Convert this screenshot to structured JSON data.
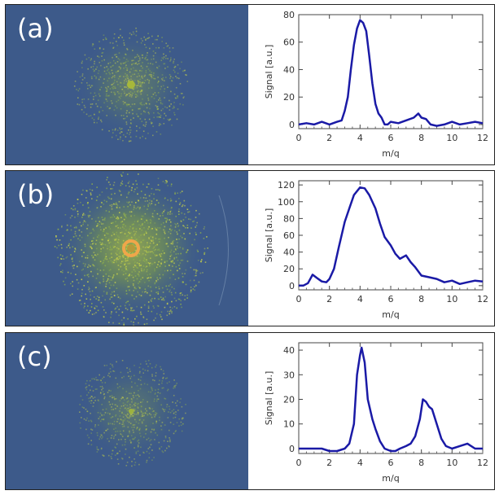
{
  "panels": [
    {
      "tag": "(a)",
      "detector": {
        "ring_intensity": 0.35,
        "core": "small-dot"
      },
      "chart_data": {
        "type": "line",
        "xlabel": "m/q",
        "ylabel": "Signal [a.u.]",
        "xlim": [
          0,
          12
        ],
        "ylim": [
          -3,
          80
        ],
        "xticks": [
          0,
          2,
          4,
          6,
          8,
          10,
          12
        ],
        "yticks": [
          0,
          20,
          40,
          60,
          80
        ],
        "color": "#1a1aa6",
        "x": [
          0,
          0.5,
          1,
          1.5,
          2,
          2.5,
          2.8,
          3.0,
          3.2,
          3.4,
          3.6,
          3.8,
          4.0,
          4.2,
          4.4,
          4.6,
          4.8,
          5.0,
          5.2,
          5.4,
          5.6,
          5.8,
          6.0,
          6.5,
          7.0,
          7.5,
          7.8,
          8.0,
          8.3,
          8.6,
          9.0,
          9.5,
          10.0,
          10.5,
          11.0,
          11.5,
          12.0
        ],
        "y": [
          0,
          1,
          0,
          2,
          0,
          2,
          3,
          10,
          20,
          40,
          58,
          70,
          76,
          74,
          68,
          50,
          30,
          15,
          8,
          5,
          0,
          0,
          2,
          1,
          3,
          5,
          8,
          5,
          4,
          0,
          -1,
          0,
          2,
          0,
          1,
          2,
          1
        ]
      }
    },
    {
      "tag": "(b)",
      "detector": {
        "ring_intensity": 1.0,
        "core": "ring"
      },
      "chart_data": {
        "type": "line",
        "xlabel": "m/q",
        "ylabel": "Signal [a.u.]",
        "xlim": [
          0,
          12
        ],
        "ylim": [
          -5,
          125
        ],
        "xticks": [
          0,
          2,
          4,
          6,
          8,
          10,
          12
        ],
        "yticks": [
          0,
          20,
          40,
          60,
          80,
          100,
          120
        ],
        "color": "#1a1aa6",
        "x": [
          0,
          0.3,
          0.6,
          0.9,
          1.2,
          1.5,
          1.8,
          2.0,
          2.3,
          2.6,
          3.0,
          3.3,
          3.6,
          4.0,
          4.3,
          4.6,
          5.0,
          5.3,
          5.6,
          6.0,
          6.3,
          6.6,
          7.0,
          7.3,
          7.6,
          8.0,
          8.5,
          9.0,
          9.5,
          10.0,
          10.5,
          11.0,
          11.5,
          12.0
        ],
        "y": [
          0,
          0,
          3,
          13,
          9,
          5,
          4,
          8,
          20,
          45,
          76,
          92,
          108,
          117,
          116,
          108,
          92,
          74,
          58,
          48,
          38,
          32,
          36,
          28,
          22,
          12,
          10,
          8,
          4,
          6,
          2,
          4,
          6,
          5
        ]
      }
    },
    {
      "tag": "(c)",
      "detector": {
        "ring_intensity": 0.25,
        "core": "tiny-dot"
      },
      "chart_data": {
        "type": "line",
        "xlabel": "m/q",
        "ylabel": "Signal [a.u.]",
        "xlim": [
          0,
          12
        ],
        "ylim": [
          -2,
          43
        ],
        "xticks": [
          0,
          2,
          4,
          6,
          8,
          10,
          12
        ],
        "yticks": [
          0,
          10,
          20,
          30,
          40
        ],
        "color": "#1a1aa6",
        "x": [
          0,
          0.5,
          1.0,
          1.5,
          2.0,
          2.5,
          3.0,
          3.3,
          3.6,
          3.8,
          4.0,
          4.1,
          4.3,
          4.5,
          4.8,
          5.0,
          5.3,
          5.6,
          6.0,
          6.3,
          6.6,
          7.0,
          7.3,
          7.6,
          7.9,
          8.1,
          8.3,
          8.5,
          8.7,
          9.0,
          9.3,
          9.6,
          10.0,
          10.5,
          11.0,
          11.5,
          12.0
        ],
        "y": [
          0,
          0,
          0,
          0,
          -1,
          -1,
          0,
          2,
          10,
          30,
          38,
          41,
          35,
          20,
          12,
          8,
          3,
          0,
          -1,
          -1,
          0,
          1,
          2,
          5,
          12,
          20,
          19,
          17,
          16,
          10,
          4,
          1,
          0,
          1,
          2,
          0,
          0
        ]
      }
    }
  ]
}
